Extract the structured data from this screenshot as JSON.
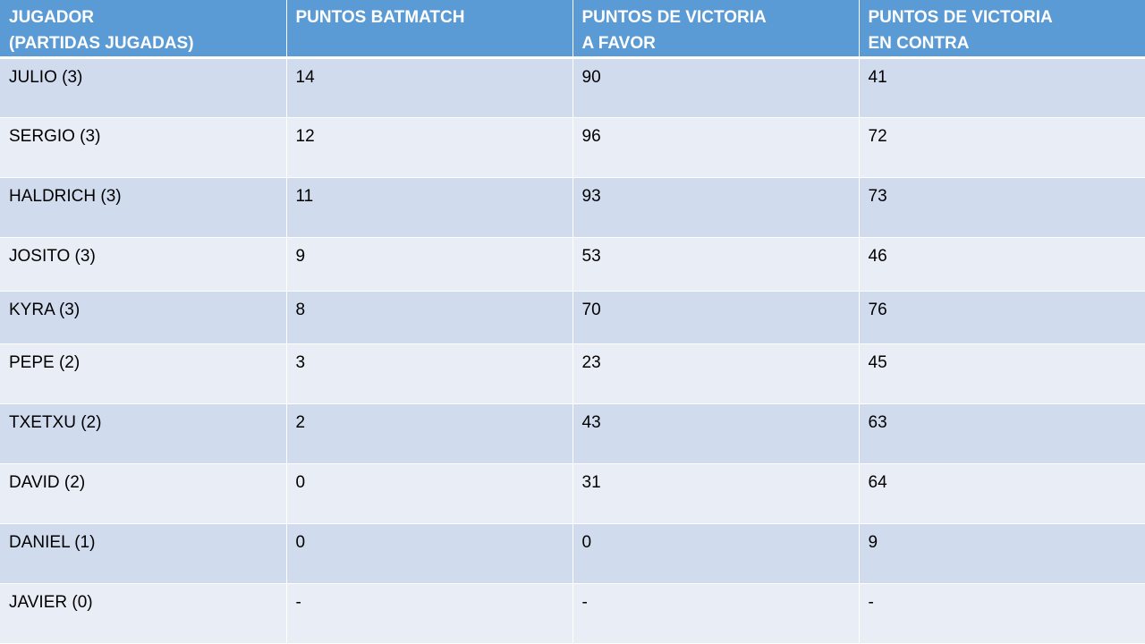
{
  "table": {
    "headers": [
      "JUGADOR\n(PARTIDAS JUGADAS)",
      "PUNTOS BATMATCH",
      "PUNTOS DE VICTORIA\nA FAVOR",
      "PUNTOS DE VICTORIA\nEN CONTRA"
    ],
    "rows": [
      [
        "JULIO (3)",
        "14",
        "90",
        "41"
      ],
      [
        "SERGIO (3)",
        "12",
        "96",
        "72"
      ],
      [
        "HALDRICH (3)",
        "11",
        "93",
        "73"
      ],
      [
        "JOSITO (3)",
        "9",
        "53",
        "46"
      ],
      [
        "KYRA (3)",
        "8",
        "70",
        "76"
      ],
      [
        "PEPE (2)",
        "3",
        "23",
        "45"
      ],
      [
        "TXETXU (2)",
        "2",
        "43",
        "63"
      ],
      [
        "DAVID (2)",
        "0",
        "31",
        "64"
      ],
      [
        "DANIEL (1)",
        "0",
        "0",
        "9"
      ],
      [
        "JAVIER (0)",
        "-",
        "-",
        "-"
      ]
    ]
  },
  "colors": {
    "header_bg": "#5b9bd5",
    "row_odd_bg": "#d0dbee",
    "row_even_bg": "#e9edf5",
    "header_text": "#ffffff",
    "cell_text": "#000000"
  }
}
